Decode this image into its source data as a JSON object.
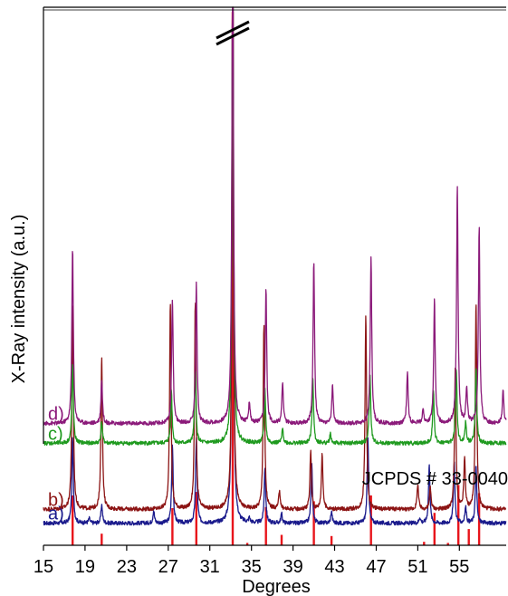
{
  "chart_data": {
    "type": "line",
    "xlabel": "Degrees",
    "ylabel": "X-Ray intensity (a.u.)",
    "xlim": [
      15,
      59.5
    ],
    "x_ticks": [
      15,
      19,
      23,
      27,
      31,
      35,
      39,
      43,
      47,
      51,
      55
    ],
    "y_ticks_shown": false,
    "grid": false,
    "axis_break_symbol": "//",
    "reference": {
      "label": "JCPDS # 33-0040",
      "color": "#e8141b",
      "peaks": [
        {
          "x": 17.8,
          "intensity": 0.43
        },
        {
          "x": 20.6,
          "intensity": 0.1
        },
        {
          "x": 27.4,
          "intensity": 0.32
        },
        {
          "x": 29.7,
          "intensity": 0.46
        },
        {
          "x": 33.2,
          "intensity": 4.6
        },
        {
          "x": 34.6,
          "intensity": 0.02
        },
        {
          "x": 36.4,
          "intensity": 0.33
        },
        {
          "x": 37.9,
          "intensity": 0.09
        },
        {
          "x": 41.0,
          "intensity": 0.38
        },
        {
          "x": 42.7,
          "intensity": 0.08
        },
        {
          "x": 46.5,
          "intensity": 0.43
        },
        {
          "x": 51.6,
          "intensity": 0.03
        },
        {
          "x": 52.6,
          "intensity": 0.28
        },
        {
          "x": 53.9,
          "intensity": 0.02
        },
        {
          "x": 54.9,
          "intensity": 0.52
        },
        {
          "x": 55.9,
          "intensity": 0.14
        },
        {
          "x": 56.9,
          "intensity": 0.45
        }
      ]
    },
    "series": [
      {
        "name": "a)",
        "color": "#1a1a8c",
        "baseline": 0.19,
        "peaks": [
          {
            "x": 17.8,
            "h": 0.73
          },
          {
            "x": 19.4,
            "h": 0.04
          },
          {
            "x": 20.6,
            "h": 0.16
          },
          {
            "x": 25.6,
            "h": 0.11
          },
          {
            "x": 27.4,
            "h": 0.68
          },
          {
            "x": 29.7,
            "h": 0.74
          },
          {
            "x": 33.2,
            "h": 4.6
          },
          {
            "x": 34.8,
            "h": 0.04
          },
          {
            "x": 36.3,
            "h": 0.48
          },
          {
            "x": 37.9,
            "h": 0.08
          },
          {
            "x": 40.8,
            "h": 0.5
          },
          {
            "x": 42.7,
            "h": 0.1
          },
          {
            "x": 46.2,
            "h": 0.72
          },
          {
            "x": 51.2,
            "h": 0.05
          },
          {
            "x": 52.1,
            "h": 0.5
          },
          {
            "x": 54.5,
            "h": 0.53
          },
          {
            "x": 55.6,
            "h": 0.14
          },
          {
            "x": 56.6,
            "h": 0.5
          }
        ]
      },
      {
        "name": "b)",
        "color": "#8c1414",
        "baseline": 0.31,
        "peaks": [
          {
            "x": 17.8,
            "h": 1.78
          },
          {
            "x": 20.6,
            "h": 1.31
          },
          {
            "x": 27.2,
            "h": 1.78
          },
          {
            "x": 29.6,
            "h": 1.78
          },
          {
            "x": 33.2,
            "h": 4.6
          },
          {
            "x": 36.2,
            "h": 1.6
          },
          {
            "x": 37.7,
            "h": 0.16
          },
          {
            "x": 40.7,
            "h": 0.5
          },
          {
            "x": 41.8,
            "h": 0.48
          },
          {
            "x": 46.0,
            "h": 1.68
          },
          {
            "x": 51.0,
            "h": 0.22
          },
          {
            "x": 52.2,
            "h": 0.19
          },
          {
            "x": 54.6,
            "h": 1.2
          },
          {
            "x": 55.5,
            "h": 0.43
          },
          {
            "x": 56.6,
            "h": 1.78
          }
        ]
      },
      {
        "name": "c)",
        "color": "#1f9a1f",
        "baseline": 0.88,
        "peaks": [
          {
            "x": 17.8,
            "h": 0.68
          },
          {
            "x": 20.6,
            "h": 0.18
          },
          {
            "x": 27.3,
            "h": 0.46
          },
          {
            "x": 29.6,
            "h": 0.64
          },
          {
            "x": 33.2,
            "h": 4.6
          },
          {
            "x": 36.3,
            "h": 0.46
          },
          {
            "x": 38.0,
            "h": 0.12
          },
          {
            "x": 40.9,
            "h": 0.58
          },
          {
            "x": 42.6,
            "h": 0.08
          },
          {
            "x": 46.4,
            "h": 0.6
          },
          {
            "x": 52.5,
            "h": 0.46
          },
          {
            "x": 54.7,
            "h": 0.65
          },
          {
            "x": 55.6,
            "h": 0.18
          },
          {
            "x": 56.6,
            "h": 0.64
          }
        ]
      },
      {
        "name": "d)",
        "color": "#8b1a7a",
        "baseline": 1.05,
        "peaks": [
          {
            "x": 17.8,
            "h": 1.52
          },
          {
            "x": 20.6,
            "h": 0.38
          },
          {
            "x": 27.4,
            "h": 1.08
          },
          {
            "x": 29.7,
            "h": 1.22
          },
          {
            "x": 33.2,
            "h": 4.6
          },
          {
            "x": 34.8,
            "h": 0.18
          },
          {
            "x": 36.4,
            "h": 1.15
          },
          {
            "x": 38.0,
            "h": 0.35
          },
          {
            "x": 41.0,
            "h": 1.4
          },
          {
            "x": 42.8,
            "h": 0.32
          },
          {
            "x": 46.5,
            "h": 1.44
          },
          {
            "x": 50.0,
            "h": 0.44
          },
          {
            "x": 51.5,
            "h": 0.12
          },
          {
            "x": 52.6,
            "h": 1.08
          },
          {
            "x": 54.8,
            "h": 2.05
          },
          {
            "x": 55.7,
            "h": 0.3
          },
          {
            "x": 56.9,
            "h": 1.7
          },
          {
            "x": 59.2,
            "h": 0.28
          }
        ]
      }
    ]
  }
}
